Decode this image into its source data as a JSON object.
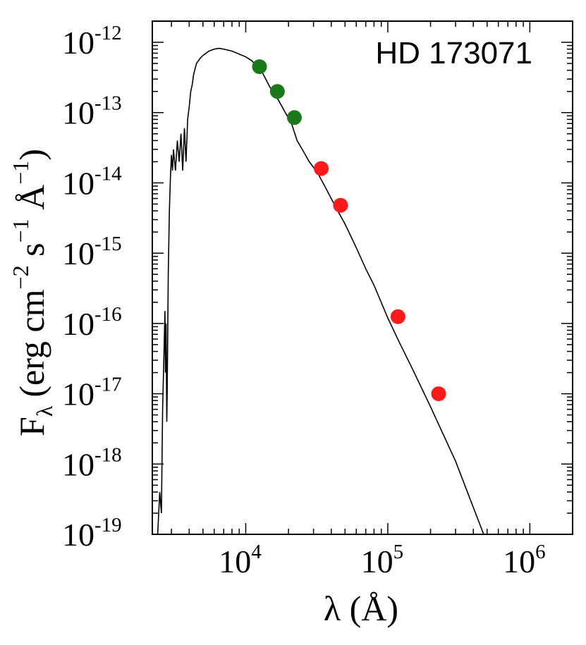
{
  "chart_data": {
    "type": "scatter",
    "annotation": "HD 173071",
    "xlabel": {
      "main": "λ (Å)"
    },
    "ylabel": {
      "base": "F",
      "sub": "λ",
      "units": "(erg cm",
      "e1": "−2",
      "s": " s",
      "e2": "−1",
      "ang": " Å",
      "e3": "−1",
      "close": ")"
    },
    "x_scale": "log",
    "y_scale": "log",
    "xlim": [
      2200,
      2000000
    ],
    "ylim": [
      1e-19,
      2e-12
    ],
    "x_ticks": [
      {
        "value": 10000,
        "base": "10",
        "exp": "4"
      },
      {
        "value": 100000,
        "base": "10",
        "exp": "5"
      },
      {
        "value": 1000000,
        "base": "10",
        "exp": "6"
      }
    ],
    "y_ticks": [
      {
        "value": 1e-12,
        "base": "10",
        "exp": "-12"
      },
      {
        "value": 1e-13,
        "base": "10",
        "exp": "-13"
      },
      {
        "value": 1e-14,
        "base": "10",
        "exp": "-14"
      },
      {
        "value": 1e-15,
        "base": "10",
        "exp": "-15"
      },
      {
        "value": 1e-16,
        "base": "10",
        "exp": "-16"
      },
      {
        "value": 1e-17,
        "base": "10",
        "exp": "-17"
      },
      {
        "value": 1e-18,
        "base": "10",
        "exp": "-18"
      },
      {
        "value": 1e-19,
        "base": "10",
        "exp": "-19"
      }
    ],
    "series": [
      {
        "kind": "line",
        "color": "#000000",
        "x": [
          2400,
          2480,
          2550,
          2600,
          2650,
          2700,
          2720,
          2750,
          2780,
          2800,
          2850,
          2900,
          2950,
          3000,
          3050,
          3100,
          3200,
          3300,
          3400,
          3500,
          3600,
          3700,
          3800,
          3900,
          4000,
          4100,
          4200,
          4300,
          4500,
          4800,
          5000,
          5500,
          6000,
          6500,
          7000,
          8000,
          9000,
          10000,
          11000,
          12000,
          13000,
          15000,
          17000,
          19000,
          21000,
          23000,
          25000,
          28000,
          32000,
          36000,
          40000,
          45000,
          50000,
          60000,
          70000,
          80000,
          100000,
          120000,
          150000,
          200000,
          300000,
          500000,
          700000
        ],
        "y": [
          1e-19,
          4e-19,
          2e-19,
          6e-18,
          3e-17,
          1.5e-16,
          2e-17,
          1e-16,
          4e-18,
          1e-17,
          5e-16,
          4e-15,
          1.2e-14,
          2.5e-14,
          1.5e-14,
          3e-14,
          1.5e-14,
          4e-14,
          2e-14,
          5e-14,
          1.5e-14,
          6e-14,
          2e-14,
          8e-14,
          1.2e-13,
          2e-13,
          2.5e-13,
          3.5e-13,
          5e-13,
          6e-13,
          6.5e-13,
          7.5e-13,
          8e-13,
          8.2e-13,
          8e-13,
          7.5e-13,
          6.8e-13,
          6.2e-13,
          5.5e-13,
          4.5e-13,
          3.8e-13,
          2.2e-13,
          1.5e-13,
          1e-13,
          7e-14,
          4e-14,
          3e-14,
          2e-14,
          1.4e-14,
          9e-15,
          6e-15,
          3.8e-15,
          2.6e-15,
          1.2e-15,
          6e-16,
          3.5e-16,
          1.2e-16,
          5.5e-17,
          2.2e-17,
          6.5e-18,
          1.1e-18,
          7.5e-20,
          1.5e-20
        ]
      },
      {
        "kind": "points",
        "color": "#1a7a1a",
        "x": [
          12500,
          16700,
          22000
        ],
        "y": [
          4.5e-13,
          2e-13,
          8.5e-14
        ]
      },
      {
        "kind": "points",
        "color": "#ff1a1a",
        "x": [
          34000,
          46500,
          118000,
          228000
        ],
        "y": [
          1.6e-14,
          4.8e-15,
          1.25e-16,
          1e-17
        ]
      }
    ]
  }
}
